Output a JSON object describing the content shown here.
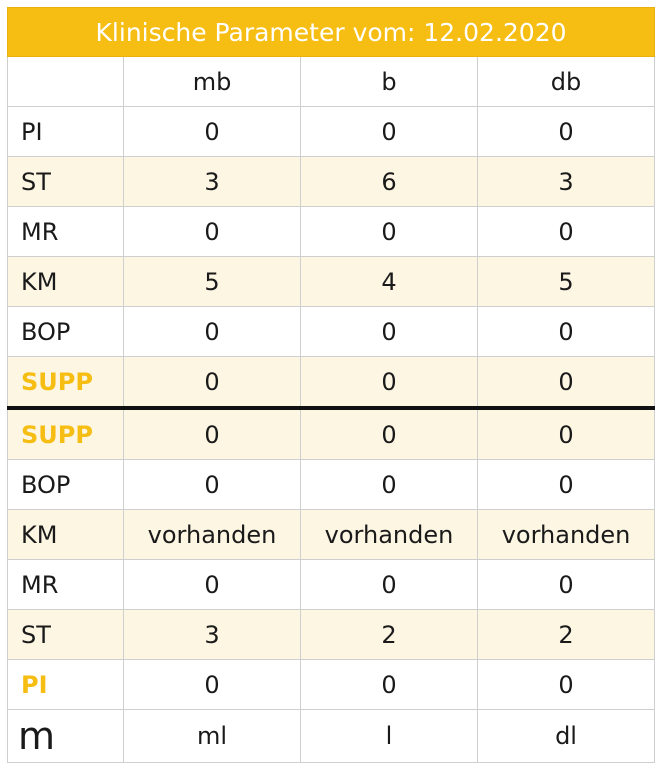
{
  "title": "Klinische Parameter vom: 12.02.2020",
  "header": {
    "corner": "",
    "col1": "mb",
    "col2": "b",
    "col3": "db"
  },
  "rows": [
    {
      "label": "PI",
      "values": [
        "0",
        "0",
        "0"
      ]
    },
    {
      "label": "ST",
      "values": [
        "3",
        "6",
        "3"
      ]
    },
    {
      "label": "MR",
      "values": [
        "0",
        "0",
        "0"
      ]
    },
    {
      "label": "KM",
      "values": [
        "5",
        "4",
        "5"
      ]
    },
    {
      "label": "BOP",
      "values": [
        "0",
        "0",
        "0"
      ]
    },
    {
      "label": "SUPP",
      "values": [
        "0",
        "0",
        "0"
      ]
    },
    {
      "label": "SUPP",
      "values": [
        "0",
        "0",
        "0"
      ]
    },
    {
      "label": "BOP",
      "values": [
        "0",
        "0",
        "0"
      ]
    },
    {
      "label": "KM",
      "values": [
        "vorhanden",
        "vorhanden",
        "vorhanden"
      ]
    },
    {
      "label": "MR",
      "values": [
        "0",
        "0",
        "0"
      ]
    },
    {
      "label": "ST",
      "values": [
        "3",
        "2",
        "2"
      ]
    },
    {
      "label": "PI",
      "values": [
        "0",
        "0",
        "0"
      ]
    }
  ],
  "footer": {
    "label": "m",
    "col1": "ml",
    "col2": "l",
    "col3": "dl"
  },
  "colors": {
    "accent": "#f6bd12",
    "shade": "#fdf6e3",
    "border": "#cfcfcf",
    "divider": "#111111"
  }
}
